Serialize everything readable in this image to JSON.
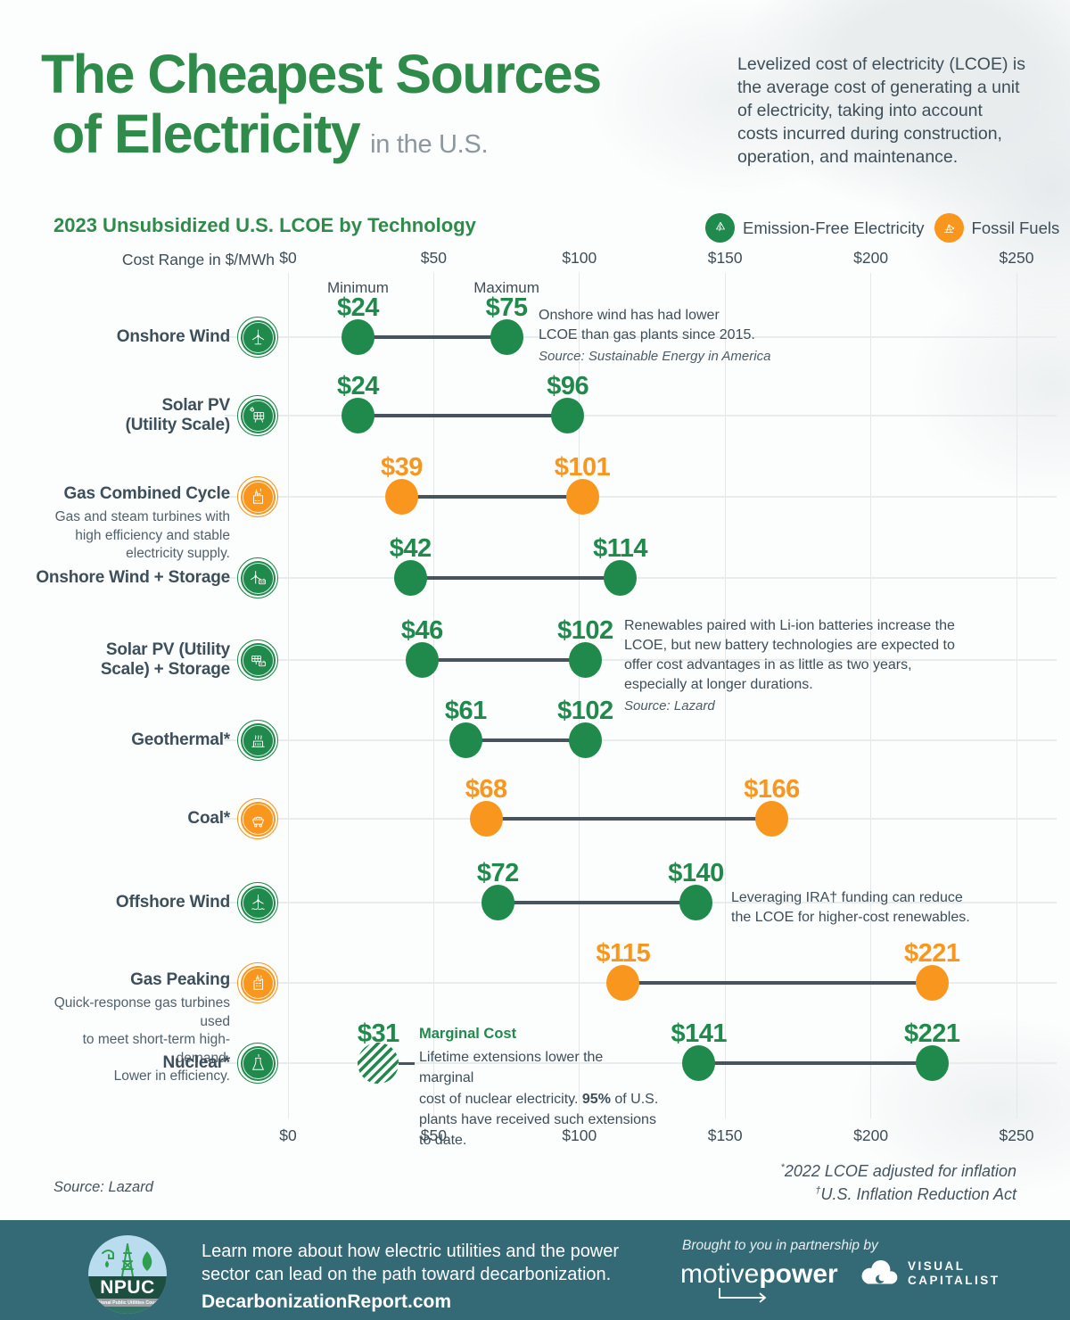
{
  "colors": {
    "green": "#1f8a4b",
    "orange": "#f8961d",
    "title_green": "#2e8b4a",
    "slate": "#3e4e58",
    "connector": "#47545e",
    "footer_bg": "#346976"
  },
  "header": {
    "title_line1": "The Cheapest Sources",
    "title_line2": "of Electricity",
    "title_suffix": "in the U.S.",
    "intro_lines": [
      "Levelized cost of electricity (LCOE) is",
      "the average cost of generating a unit",
      "of electricity, taking into account",
      "costs incurred during construction,",
      "operation, and maintenance."
    ]
  },
  "chart": {
    "subtitle": "2023 Unsubsidized U.S. LCOE by Technology",
    "axis_label": "Cost Range in $/MWh",
    "min_header": "Minimum",
    "max_header": "Maximum",
    "legend": [
      {
        "label": "Emission-Free Electricity",
        "icon": "recycle-bolt",
        "color_key": "green"
      },
      {
        "label": "Fossil Fuels",
        "icon": "oil-derrick",
        "color_key": "orange"
      }
    ]
  },
  "chart_data": {
    "type": "dumbbell-range",
    "unit": "$/MWh",
    "x_range": [
      0,
      250
    ],
    "tick_values": [
      0,
      50,
      100,
      150,
      200,
      250
    ],
    "tick_labels": [
      "$0",
      "$50",
      "$100",
      "$150",
      "$200",
      "$250"
    ],
    "rows": [
      {
        "label_lines": [
          "Onshore Wind"
        ],
        "icon": "wind-turbine",
        "category": "green",
        "min": 24,
        "max": 75,
        "min_label": "$24",
        "max_label": "$75",
        "annotation_lines": [
          "Onshore wind has had lower",
          "LCOE than gas plants since 2015."
        ],
        "annotation_source": "Source: Sustainable Energy in America"
      },
      {
        "label_lines": [
          "Solar PV",
          "(Utility Scale)"
        ],
        "icon": "solar-panel",
        "category": "green",
        "min": 24,
        "max": 96,
        "min_label": "$24",
        "max_label": "$96"
      },
      {
        "label_lines": [
          "Gas Combined Cycle"
        ],
        "icon": "gas-plant",
        "category": "orange",
        "min": 39,
        "max": 101,
        "min_label": "$39",
        "max_label": "$101",
        "desc_lines": [
          "Gas and steam turbines with",
          "high efficiency and stable",
          "electricity supply."
        ]
      },
      {
        "label_lines": [
          "Onshore Wind + Storage"
        ],
        "icon": "wind-storage",
        "category": "green",
        "min": 42,
        "max": 114,
        "min_label": "$42",
        "max_label": "$114"
      },
      {
        "label_lines": [
          "Solar PV (Utility",
          "Scale) + Storage"
        ],
        "icon": "solar-storage",
        "category": "green",
        "min": 46,
        "max": 102,
        "min_label": "$46",
        "max_label": "$102",
        "annotation_lines": [
          "Renewables paired with Li-ion batteries increase the",
          "LCOE, but new battery technologies are expected to",
          "offer cost advantages in as little as two years,",
          "especially at longer durations."
        ],
        "annotation_source": "Source: Lazard"
      },
      {
        "label_lines": [
          "Geothermal*"
        ],
        "icon": "geothermal",
        "category": "green",
        "min": 61,
        "max": 102,
        "min_label": "$61",
        "max_label": "$102"
      },
      {
        "label_lines": [
          "Coal*"
        ],
        "icon": "coal-cart",
        "category": "orange",
        "min": 68,
        "max": 166,
        "min_label": "$68",
        "max_label": "$166"
      },
      {
        "label_lines": [
          "Offshore Wind"
        ],
        "icon": "offshore-wind",
        "category": "green",
        "min": 72,
        "max": 140,
        "min_label": "$72",
        "max_label": "$140",
        "annotation_lines": [
          "Leveraging IRA† funding can reduce",
          "the LCOE for higher-cost renewables."
        ]
      },
      {
        "label_lines": [
          "Gas Peaking"
        ],
        "icon": "gas-peaking",
        "category": "orange",
        "min": 115,
        "max": 221,
        "min_label": "$115",
        "max_label": "$221",
        "desc_lines": [
          "Quick-response gas turbines used",
          "to meet short-term high-demand.",
          "Lower in efficiency."
        ]
      },
      {
        "label_lines": [
          "Nuclear*"
        ],
        "icon": "cooling-tower",
        "category": "green",
        "min": 141,
        "max": 221,
        "min_label": "$141",
        "max_label": "$221",
        "marginal": {
          "value": 31,
          "label": "$31",
          "title": "Marginal Cost",
          "lines": [
            "Lifetime extensions lower the marginal",
            "cost of nuclear electricity. 95% of U.S.",
            "plants have received such extensions",
            "to date."
          ],
          "bold": "95%"
        }
      }
    ]
  },
  "footnotes": {
    "source_left": "Source: Lazard",
    "notes": [
      {
        "sup": "*",
        "text": "2022 LCOE adjusted for inflation"
      },
      {
        "sup": "†",
        "text": "U.S. Inflation Reduction Act"
      }
    ]
  },
  "footer": {
    "npuc_acronym": "NPUC",
    "npuc_full": "National Public Utilities Council",
    "learn_lines": [
      "Learn more about how electric utilities and the power",
      "sector can lead on the path toward decarbonization."
    ],
    "site": "DecarbonizationReport.com",
    "partnership": "Brought to you in partnership by",
    "brand_light": "motive",
    "brand_bold": "power",
    "vc_line1": "VISUAL",
    "vc_line2": "CAPITALIST"
  }
}
